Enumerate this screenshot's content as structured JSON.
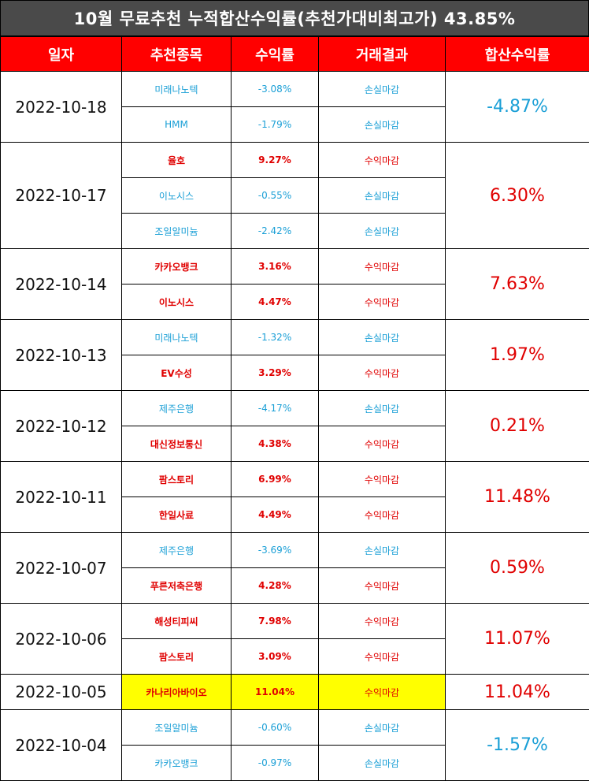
{
  "title": "10월 무료추천 누적합산수익률(추천가대비최고가) 43.85%",
  "headers": [
    "일자",
    "추천종목",
    "수익률",
    "거래결과",
    "합산수익률"
  ],
  "groups": [
    {
      "date": "2022-10-18",
      "total": "-4.87%",
      "total_sign": "neg",
      "rows": [
        {
          "name": "미래나노텍",
          "ret": "-3.08%",
          "result": "손실마감",
          "sign": "neg"
        },
        {
          "name": "HMM",
          "ret": "-1.79%",
          "result": "손실마감",
          "sign": "neg"
        }
      ]
    },
    {
      "date": "2022-10-17",
      "total": "6.30%",
      "total_sign": "pos",
      "rows": [
        {
          "name": "율호",
          "ret": "9.27%",
          "result": "수익마감",
          "sign": "pos"
        },
        {
          "name": "이노시스",
          "ret": "-0.55%",
          "result": "손실마감",
          "sign": "neg"
        },
        {
          "name": "조일알미늄",
          "ret": "-2.42%",
          "result": "손실마감",
          "sign": "neg"
        }
      ]
    },
    {
      "date": "2022-10-14",
      "total": "7.63%",
      "total_sign": "pos",
      "rows": [
        {
          "name": "카카오뱅크",
          "ret": "3.16%",
          "result": "수익마감",
          "sign": "pos"
        },
        {
          "name": "이노시스",
          "ret": "4.47%",
          "result": "수익마감",
          "sign": "pos"
        }
      ]
    },
    {
      "date": "2022-10-13",
      "total": "1.97%",
      "total_sign": "pos",
      "rows": [
        {
          "name": "미래나노텍",
          "ret": "-1.32%",
          "result": "손실마감",
          "sign": "neg"
        },
        {
          "name": "EV수성",
          "ret": "3.29%",
          "result": "수익마감",
          "sign": "pos"
        }
      ]
    },
    {
      "date": "2022-10-12",
      "total": "0.21%",
      "total_sign": "pos",
      "rows": [
        {
          "name": "제주은행",
          "ret": "-4.17%",
          "result": "손실마감",
          "sign": "neg"
        },
        {
          "name": "대신정보통신",
          "ret": "4.38%",
          "result": "수익마감",
          "sign": "pos"
        }
      ]
    },
    {
      "date": "2022-10-11",
      "total": "11.48%",
      "total_sign": "pos",
      "rows": [
        {
          "name": "팜스토리",
          "ret": "6.99%",
          "result": "수익마감",
          "sign": "pos"
        },
        {
          "name": "한일사료",
          "ret": "4.49%",
          "result": "수익마감",
          "sign": "pos"
        }
      ]
    },
    {
      "date": "2022-10-07",
      "total": "0.59%",
      "total_sign": "pos",
      "rows": [
        {
          "name": "제주은행",
          "ret": "-3.69%",
          "result": "손실마감",
          "sign": "neg"
        },
        {
          "name": "푸른저축은행",
          "ret": "4.28%",
          "result": "수익마감",
          "sign": "pos"
        }
      ]
    },
    {
      "date": "2022-10-06",
      "total": "11.07%",
      "total_sign": "pos",
      "rows": [
        {
          "name": "해성티피씨",
          "ret": "7.98%",
          "result": "수익마감",
          "sign": "pos"
        },
        {
          "name": "팜스토리",
          "ret": "3.09%",
          "result": "수익마감",
          "sign": "pos"
        }
      ]
    },
    {
      "date": "2022-10-05",
      "total": "11.04%",
      "total_sign": "pos",
      "highlight": true,
      "rows": [
        {
          "name": "카나리아바이오",
          "ret": "11.04%",
          "result": "수익마감",
          "sign": "pos"
        }
      ]
    },
    {
      "date": "2022-10-04",
      "total": "-1.57%",
      "total_sign": "neg",
      "rows": [
        {
          "name": "조일알미늄",
          "ret": "-0.60%",
          "result": "손실마감",
          "sign": "neg"
        },
        {
          "name": "카카오뱅크",
          "ret": "-0.97%",
          "result": "손실마감",
          "sign": "neg"
        }
      ]
    }
  ],
  "colors": {
    "positive": "#e00000",
    "negative": "#1a9fd6",
    "header_bg": "#ff0000",
    "title_bg": "#4a4a4a",
    "highlight": "#ffff00"
  }
}
